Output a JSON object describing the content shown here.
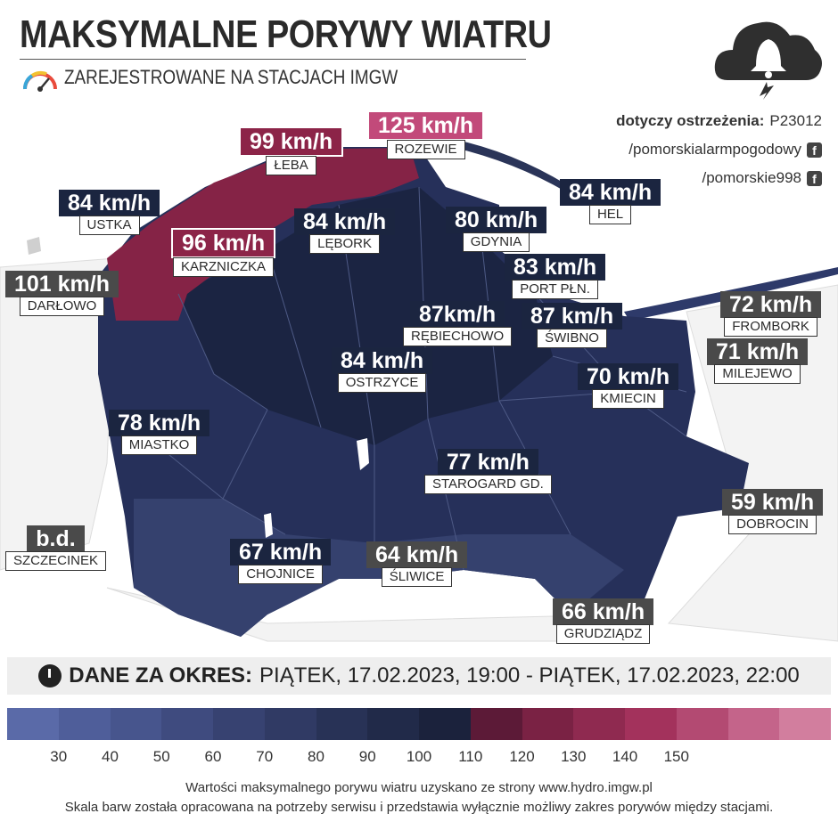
{
  "header": {
    "title": "MAKSYMALNE PORYWY WIATRU",
    "subtitle": "ZAREJESTROWANE NA STACJACH IMGW",
    "gauge_icon": "speedometer-icon",
    "alarm_icon": "cloud-bell-lightning-icon"
  },
  "warning": {
    "label": "dotyczy ostrzeżenia:",
    "code": "P23012",
    "social": [
      {
        "handle": "/pomorskialarmpogodowy",
        "icon": "facebook-icon"
      },
      {
        "handle": "/pomorskie998",
        "icon": "facebook-icon"
      }
    ]
  },
  "stations": [
    {
      "name": "ROZEWIE",
      "value": "125 km/h",
      "style": "pink"
    },
    {
      "name": "ŁEBA",
      "value": "99 km/h",
      "style": "red"
    },
    {
      "name": "USTKA",
      "value": "84 km/h",
      "style": "navy"
    },
    {
      "name": "HEL",
      "value": "84 km/h",
      "style": "navy"
    },
    {
      "name": "LĘBORK",
      "value": "84 km/h",
      "style": "navy"
    },
    {
      "name": "GDYNIA",
      "value": "80 km/h",
      "style": "navy"
    },
    {
      "name": "KARZNICZKA",
      "value": "96 km/h",
      "style": "red"
    },
    {
      "name": "PORT PŁN.",
      "value": "83 km/h",
      "style": "navy"
    },
    {
      "name": "DARŁOWO",
      "value": "101 km/h",
      "style": "gray"
    },
    {
      "name": "FROMBORK",
      "value": "72 km/h",
      "style": "gray"
    },
    {
      "name": "RĘBIECHOWO",
      "value": "87km/h",
      "style": "navy"
    },
    {
      "name": "ŚWIBNO",
      "value": "87 km/h",
      "style": "navy"
    },
    {
      "name": "MILEJEWO",
      "value": "71 km/h",
      "style": "gray"
    },
    {
      "name": "OSTRZYCE",
      "value": "84 km/h",
      "style": "navy"
    },
    {
      "name": "KMIECIN",
      "value": "70 km/h",
      "style": "navy"
    },
    {
      "name": "MIASTKO",
      "value": "78 km/h",
      "style": "navy"
    },
    {
      "name": "STAROGARD GD.",
      "value": "77 km/h",
      "style": "navy"
    },
    {
      "name": "DOBROCIN",
      "value": "59 km/h",
      "style": "gray"
    },
    {
      "name": "SZCZECINEK",
      "value": "b.d.",
      "style": "gray"
    },
    {
      "name": "CHOJNICE",
      "value": "67 km/h",
      "style": "navy"
    },
    {
      "name": "ŚLIWICE",
      "value": "64 km/h",
      "style": "gray"
    },
    {
      "name": "GRUDZIĄDZ",
      "value": "66 km/h",
      "style": "gray"
    }
  ],
  "period": {
    "lead": "DANE ZA OKRES:",
    "range": "PIĄTEK, 17.02.2023, 19:00 - PIĄTEK, 17.02.2023, 22:00",
    "icon": "clock-calendar-icon"
  },
  "legend": {
    "colors": [
      "#5a6aa8",
      "#4f5e9a",
      "#47558d",
      "#3f4b7f",
      "#374271",
      "#303a64",
      "#283256",
      "#212a49",
      "#1b223c",
      "#5c1a37",
      "#7a2244",
      "#8f2a50",
      "#a3325c",
      "#b34a72",
      "#c4648a",
      "#d27e9e"
    ],
    "ticks": [
      "30",
      "40",
      "50",
      "60",
      "70",
      "80",
      "90",
      "100",
      "110",
      "120",
      "130",
      "140",
      "150"
    ]
  },
  "footer": {
    "line1": "Wartości maksymalnego porywu wiatru uzyskano ze strony www.hydro.imgw.pl",
    "line2": "Skala barw została opracowana na potrzeby serwisu i przedstawia wyłącznie możliwy zakres porywów między stacjami."
  }
}
